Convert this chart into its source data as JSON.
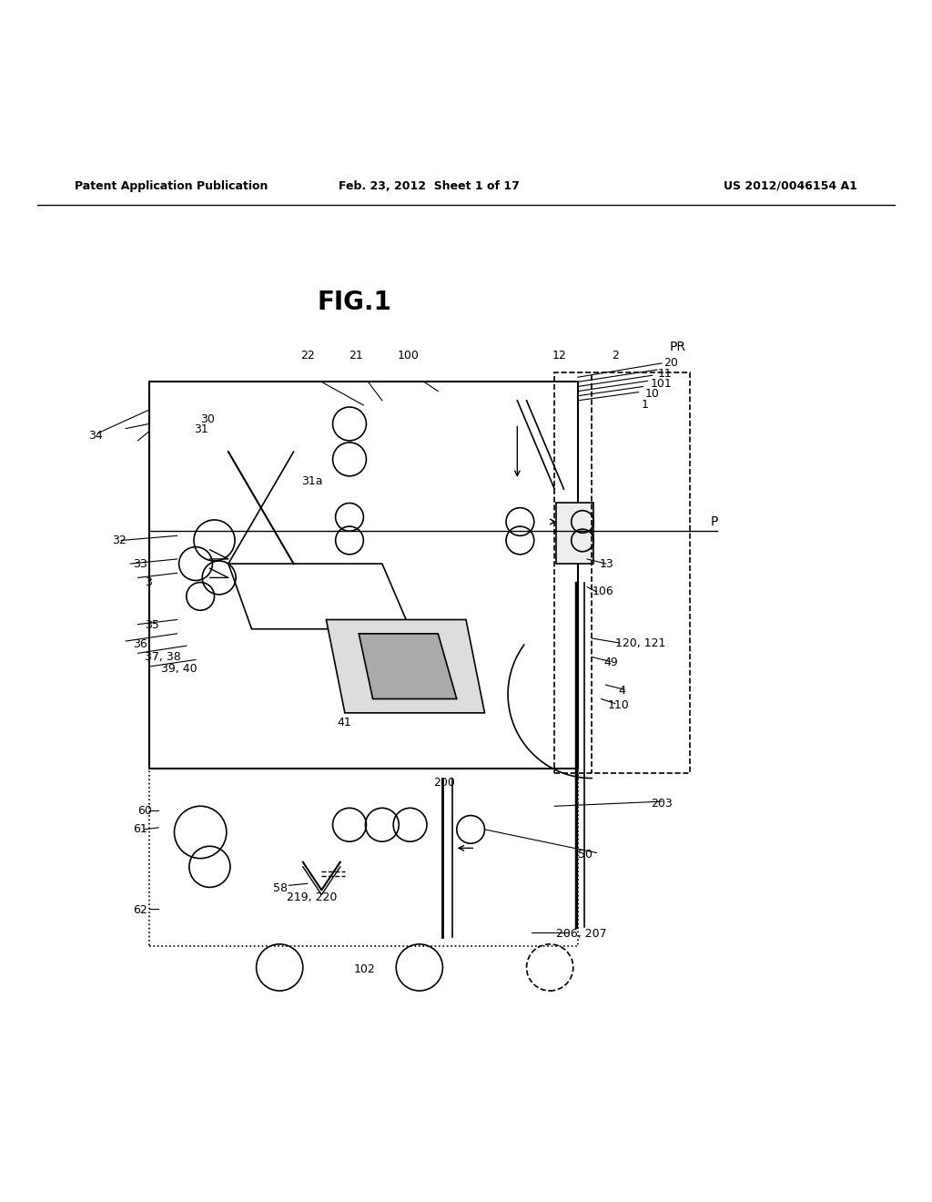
{
  "title": "FIG.1",
  "header_left": "Patent Application Publication",
  "header_center": "Feb. 23, 2012  Sheet 1 of 17",
  "header_right": "US 2012/0046154 A1",
  "bg_color": "#ffffff",
  "fig_color": "#000000"
}
